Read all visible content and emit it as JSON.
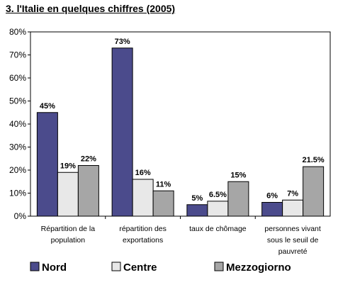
{
  "chart_data": {
    "type": "bar",
    "title": "3. l'Italie en quelques chiffres (2005)",
    "categories": [
      [
        "Répartition de la",
        "population"
      ],
      [
        "répartition des",
        "exportations"
      ],
      [
        "taux de chômage"
      ],
      [
        "personnes vivant",
        "sous le seuil de",
        "pauvreté"
      ]
    ],
    "series": [
      {
        "name": "Nord",
        "values": [
          45,
          73,
          5,
          6
        ],
        "labels": [
          "45%",
          "73%",
          "5%",
          "6%"
        ],
        "color": "#4b4b8c"
      },
      {
        "name": "Centre",
        "values": [
          19,
          16,
          6.5,
          7
        ],
        "labels": [
          "19%",
          "16%",
          "6.5%",
          "7%"
        ],
        "color": "#e8e8e8"
      },
      {
        "name": "Mezzogiorno",
        "values": [
          22,
          11,
          15,
          21.5
        ],
        "labels": [
          "22%",
          "11%",
          "15%",
          "21.5%"
        ],
        "color": "#a6a6a6"
      }
    ],
    "ylim": [
      0,
      80
    ],
    "yticks": [
      "0%",
      "10%",
      "20%",
      "30%",
      "40%",
      "50%",
      "60%",
      "70%",
      "80%"
    ],
    "grid": false,
    "legend_position": "bottom"
  }
}
